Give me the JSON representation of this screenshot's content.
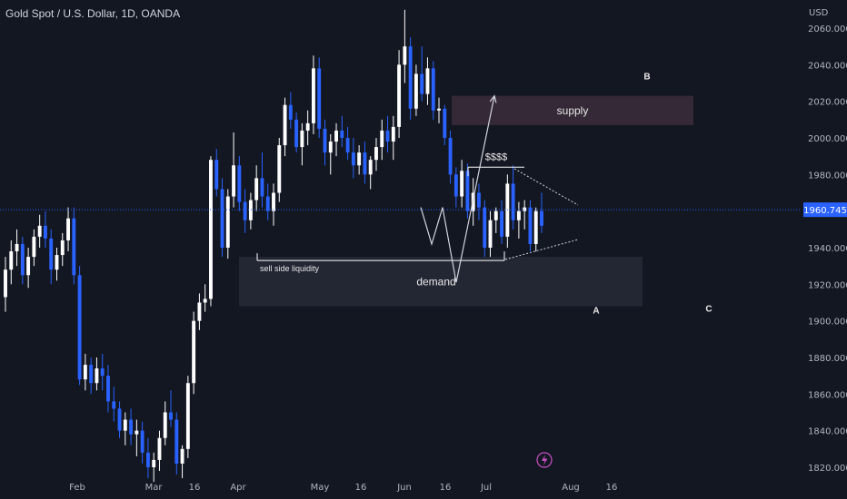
{
  "header": {
    "title": "Gold Spot / U.S. Dollar, 1D, OANDA",
    "currency": "USD"
  },
  "colors": {
    "background": "#131722",
    "up": "#ffffff",
    "down": "#2962ff",
    "price_line": "#2962ff",
    "supply_zone": "#3a2a3a",
    "demand_zone": "#2a2e39",
    "axis_text": "#b2b5be",
    "flash_icon": "#c850c0"
  },
  "chart_data": {
    "type": "candlestick",
    "instrument": "Gold Spot / U.S. Dollar",
    "timeframe": "1D",
    "broker": "OANDA",
    "y_axis": {
      "ticks": [
        1820,
        1840,
        1860,
        1880,
        1900,
        1920,
        1940,
        1960,
        1980,
        2000,
        2020,
        2040,
        2060
      ],
      "tick_labels": [
        "1820.000",
        "1840.000",
        "1860.000",
        "1880.000",
        "1900.000",
        "1920.000",
        "1940.000",
        "1960.000",
        "1980.000",
        "2000.000",
        "2020.000",
        "2040.000",
        "2060.000"
      ],
      "range": [
        1813,
        2072
      ]
    },
    "x_axis": {
      "labels": [
        "Feb",
        "Mar",
        "16",
        "Apr",
        "May",
        "16",
        "Jun",
        "16",
        "Jul",
        "Aug",
        "16"
      ],
      "label_dates": [
        "2023-02-01",
        "2023-03-01",
        "2023-03-16",
        "2023-04-01",
        "2023-05-01",
        "2023-05-16",
        "2023-06-01",
        "2023-06-16",
        "2023-07-01",
        "2023-08-01",
        "2023-08-16"
      ]
    },
    "current_price": 1960.745,
    "current_price_label": "1960.745",
    "candles": [
      [
        1913,
        1935,
        1905,
        1928
      ],
      [
        1928,
        1944,
        1920,
        1938
      ],
      [
        1938,
        1950,
        1930,
        1942
      ],
      [
        1942,
        1946,
        1920,
        1925
      ],
      [
        1925,
        1940,
        1918,
        1935
      ],
      [
        1935,
        1950,
        1930,
        1946
      ],
      [
        1946,
        1958,
        1940,
        1952
      ],
      [
        1952,
        1960,
        1940,
        1945
      ],
      [
        1945,
        1950,
        1920,
        1928
      ],
      [
        1928,
        1940,
        1922,
        1936
      ],
      [
        1936,
        1948,
        1930,
        1944
      ],
      [
        1944,
        1962,
        1938,
        1956
      ],
      [
        1956,
        1962,
        1920,
        1925
      ],
      [
        1925,
        1930,
        1865,
        1868
      ],
      [
        1868,
        1882,
        1862,
        1876
      ],
      [
        1876,
        1880,
        1860,
        1866
      ],
      [
        1866,
        1880,
        1862,
        1874
      ],
      [
        1874,
        1882,
        1862,
        1870
      ],
      [
        1870,
        1876,
        1850,
        1856
      ],
      [
        1856,
        1864,
        1845,
        1852
      ],
      [
        1852,
        1856,
        1836,
        1840
      ],
      [
        1840,
        1850,
        1832,
        1846
      ],
      [
        1846,
        1852,
        1832,
        1838
      ],
      [
        1838,
        1846,
        1826,
        1840
      ],
      [
        1840,
        1845,
        1822,
        1828
      ],
      [
        1828,
        1836,
        1814,
        1820
      ],
      [
        1820,
        1828,
        1812,
        1824
      ],
      [
        1824,
        1840,
        1818,
        1836
      ],
      [
        1836,
        1856,
        1832,
        1850
      ],
      [
        1850,
        1862,
        1842,
        1846
      ],
      [
        1846,
        1850,
        1816,
        1822
      ],
      [
        1822,
        1832,
        1814,
        1830
      ],
      [
        1830,
        1870,
        1825,
        1866
      ],
      [
        1866,
        1905,
        1860,
        1900
      ],
      [
        1900,
        1915,
        1895,
        1910
      ],
      [
        1910,
        1920,
        1905,
        1912
      ],
      [
        1912,
        1990,
        1908,
        1988
      ],
      [
        1988,
        1994,
        1968,
        1972
      ],
      [
        1972,
        1978,
        1935,
        1940
      ],
      [
        1940,
        1972,
        1934,
        1968
      ],
      [
        1968,
        2003,
        1962,
        1985
      ],
      [
        1985,
        1990,
        1960,
        1965
      ],
      [
        1965,
        1972,
        1948,
        1955
      ],
      [
        1955,
        1970,
        1950,
        1966
      ],
      [
        1966,
        1985,
        1960,
        1978
      ],
      [
        1978,
        1992,
        1962,
        1968
      ],
      [
        1968,
        1975,
        1955,
        1960
      ],
      [
        1960,
        1975,
        1952,
        1970
      ],
      [
        1970,
        2000,
        1965,
        1996
      ],
      [
        1996,
        2022,
        1990,
        2018
      ],
      [
        2018,
        2025,
        2005,
        2010
      ],
      [
        2010,
        2014,
        1992,
        1995
      ],
      [
        1995,
        2008,
        1985,
        2004
      ],
      [
        2004,
        2015,
        1996,
        2008
      ],
      [
        2008,
        2045,
        2002,
        2038
      ],
      [
        2038,
        2044,
        2000,
        2005
      ],
      [
        2005,
        2010,
        1985,
        1992
      ],
      [
        1992,
        2002,
        1980,
        1998
      ],
      [
        1998,
        2008,
        1990,
        2004
      ],
      [
        2004,
        2012,
        1995,
        2000
      ],
      [
        2000,
        2006,
        1988,
        1992
      ],
      [
        1992,
        2000,
        1978,
        1985
      ],
      [
        1985,
        1996,
        1980,
        1992
      ],
      [
        1992,
        1998,
        1975,
        1980
      ],
      [
        1980,
        1990,
        1972,
        1988
      ],
      [
        1988,
        2000,
        1982,
        1995
      ],
      [
        1995,
        2010,
        1988,
        2004
      ],
      [
        2004,
        2012,
        1992,
        1998
      ],
      [
        1998,
        2012,
        1988,
        2006
      ],
      [
        2006,
        2048,
        2000,
        2040
      ],
      [
        2040,
        2070,
        2030,
        2050
      ],
      [
        2050,
        2055,
        2010,
        2016
      ],
      [
        2016,
        2040,
        2012,
        2035
      ],
      [
        2035,
        2050,
        2020,
        2024
      ],
      [
        2024,
        2044,
        2018,
        2038
      ],
      [
        2038,
        2042,
        2010,
        2015
      ],
      [
        2015,
        2022,
        2008,
        2016
      ],
      [
        2016,
        2018,
        1996,
        2000
      ],
      [
        2000,
        2004,
        1975,
        1980
      ],
      [
        1980,
        1984,
        1962,
        1968
      ],
      [
        1968,
        1988,
        1962,
        1982
      ],
      [
        1982,
        1986,
        1956,
        1960
      ],
      [
        1960,
        1978,
        1952,
        1970
      ],
      [
        1970,
        1975,
        1955,
        1962
      ],
      [
        1962,
        1966,
        1935,
        1940
      ],
      [
        1940,
        1960,
        1935,
        1955
      ],
      [
        1955,
        1962,
        1948,
        1960
      ],
      [
        1960,
        1966,
        1942,
        1946
      ],
      [
        1946,
        1980,
        1940,
        1975
      ],
      [
        1975,
        1985,
        1950,
        1955
      ],
      [
        1955,
        1965,
        1945,
        1960
      ],
      [
        1960,
        1966,
        1950,
        1962
      ],
      [
        1962,
        1966,
        1938,
        1942
      ],
      [
        1942,
        1962,
        1938,
        1960
      ],
      [
        1960,
        1970,
        1948,
        1952
      ]
    ],
    "annotations": [
      {
        "type": "zone",
        "label": "supply",
        "price_top": 2023,
        "price_bottom": 2007
      },
      {
        "type": "zone",
        "label": "demand",
        "price_top": 1935,
        "price_bottom": 1908
      },
      {
        "type": "level",
        "label": "sell side liquidity",
        "price": 1933
      },
      {
        "type": "level",
        "label": "$$$$",
        "price": 1984
      },
      {
        "type": "point",
        "label": "A",
        "price": 1906
      },
      {
        "type": "point",
        "label": "B",
        "price": 2034
      },
      {
        "type": "point",
        "label": "C",
        "price": 1907
      }
    ],
    "projection": [
      {
        "date": "2023-06-07",
        "price": 1962
      },
      {
        "date": "2023-06-11",
        "price": 1942
      },
      {
        "date": "2023-06-15",
        "price": 1962
      },
      {
        "date": "2023-06-20",
        "price": 1921
      },
      {
        "date": "2023-07-04",
        "price": 2023
      }
    ]
  }
}
